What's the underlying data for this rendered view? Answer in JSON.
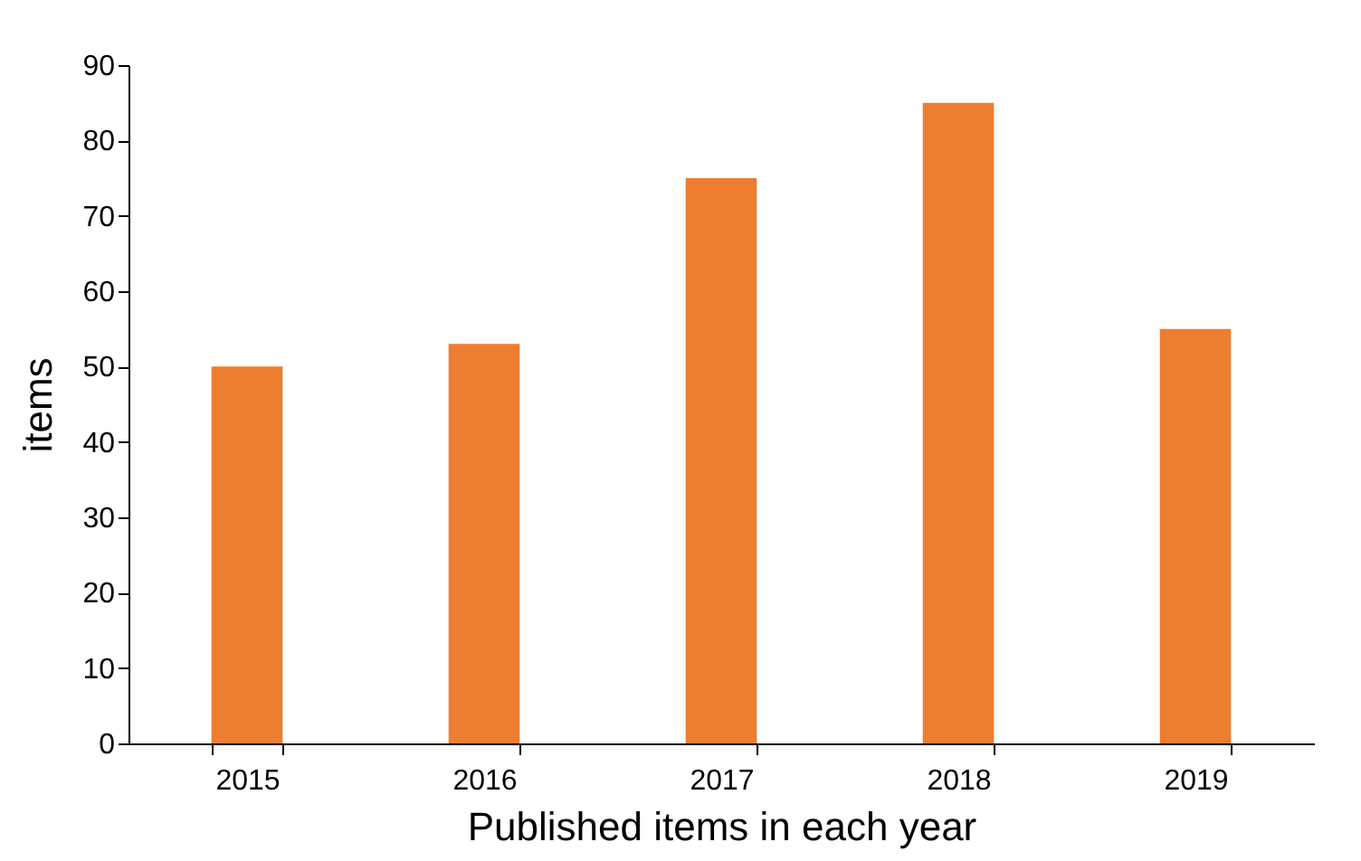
{
  "chart_data": {
    "type": "bar",
    "xlabel": "Published items in each year",
    "ylabel": "items",
    "categories": [
      "2015",
      "2016",
      "2017",
      "2018",
      "2019"
    ],
    "values": [
      50,
      53,
      75,
      85,
      55
    ],
    "color": "#ed7d31",
    "ylim": [
      0,
      90
    ],
    "yticks": [
      0,
      10,
      20,
      30,
      40,
      50,
      60,
      70,
      80,
      90
    ],
    "grid": false
  }
}
